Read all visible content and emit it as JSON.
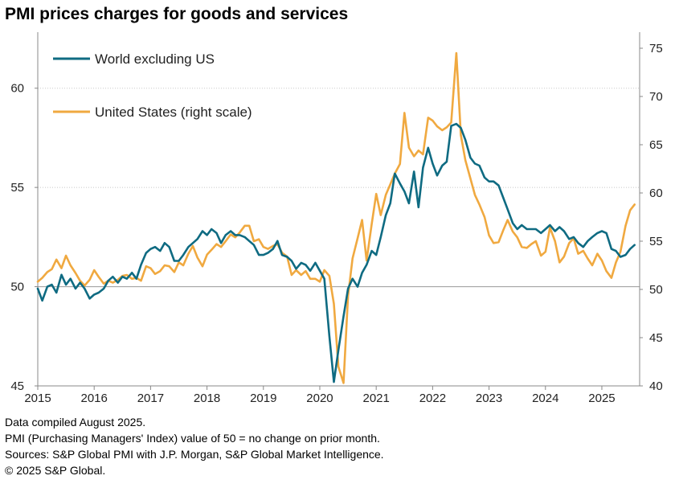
{
  "title": "PMI prices charges for goods and services",
  "chart_data": {
    "type": "line",
    "title": "PMI prices charges for goods and services",
    "x_range": [
      2015.0,
      2025.67
    ],
    "x_ticks": [
      "2015",
      "2016",
      "2017",
      "2018",
      "2019",
      "2020",
      "2021",
      "2022",
      "2023",
      "2024",
      "2025"
    ],
    "y_left": {
      "range": [
        45,
        62.5
      ],
      "ticks": [
        "45",
        "50",
        "55",
        "60"
      ]
    },
    "y_right": {
      "range": [
        40,
        76
      ],
      "ticks": [
        "40",
        "45",
        "50",
        "55",
        "60",
        "65",
        "70",
        "75"
      ]
    },
    "grid": "horizontal at 50 and 55 and 60 (left scale)",
    "legend_position": "top-left",
    "series": [
      {
        "name": "World excluding US",
        "axis": "left",
        "color": "#0f6b82",
        "x": [
          2015.0,
          2015.08,
          2015.17,
          2015.25,
          2015.33,
          2015.42,
          2015.5,
          2015.58,
          2015.67,
          2015.75,
          2015.83,
          2015.92,
          2016.0,
          2016.08,
          2016.17,
          2016.25,
          2016.33,
          2016.42,
          2016.5,
          2016.58,
          2016.67,
          2016.75,
          2016.83,
          2016.92,
          2017.0,
          2017.08,
          2017.17,
          2017.25,
          2017.33,
          2017.42,
          2017.5,
          2017.58,
          2017.67,
          2017.75,
          2017.83,
          2017.92,
          2018.0,
          2018.08,
          2018.17,
          2018.25,
          2018.33,
          2018.42,
          2018.5,
          2018.58,
          2018.67,
          2018.75,
          2018.83,
          2018.92,
          2019.0,
          2019.08,
          2019.17,
          2019.25,
          2019.33,
          2019.42,
          2019.5,
          2019.58,
          2019.67,
          2019.75,
          2019.83,
          2019.92,
          2020.0,
          2020.08,
          2020.17,
          2020.25,
          2020.33,
          2020.42,
          2020.5,
          2020.58,
          2020.67,
          2020.75,
          2020.83,
          2020.92,
          2021.0,
          2021.08,
          2021.17,
          2021.25,
          2021.33,
          2021.42,
          2021.5,
          2021.58,
          2021.67,
          2021.75,
          2021.83,
          2021.92,
          2022.0,
          2022.08,
          2022.17,
          2022.25,
          2022.33,
          2022.42,
          2022.5,
          2022.58,
          2022.67,
          2022.75,
          2022.83,
          2022.92,
          2023.0,
          2023.08,
          2023.17,
          2023.25,
          2023.33,
          2023.42,
          2023.5,
          2023.58,
          2023.67,
          2023.75,
          2023.83,
          2023.92,
          2024.0,
          2024.08,
          2024.17,
          2024.25,
          2024.33,
          2024.42,
          2024.5,
          2024.58,
          2024.67,
          2024.75,
          2024.83,
          2024.92,
          2025.0,
          2025.08,
          2025.17,
          2025.25,
          2025.33,
          2025.42,
          2025.5,
          2025.58
        ],
        "values": [
          49.9,
          49.3,
          50.0,
          50.1,
          49.7,
          50.6,
          50.1,
          50.4,
          49.9,
          50.2,
          49.9,
          49.4,
          49.6,
          49.7,
          49.9,
          50.3,
          50.5,
          50.2,
          50.5,
          50.4,
          50.7,
          50.4,
          51.1,
          51.7,
          51.9,
          52.0,
          51.8,
          52.2,
          52.0,
          51.3,
          51.3,
          51.6,
          52.0,
          52.2,
          52.4,
          52.8,
          52.6,
          52.9,
          52.7,
          52.2,
          52.6,
          52.8,
          52.6,
          52.6,
          52.5,
          52.3,
          52.1,
          51.6,
          51.6,
          51.7,
          51.9,
          52.3,
          51.6,
          51.5,
          51.3,
          50.9,
          51.2,
          51.1,
          50.8,
          51.2,
          50.8,
          50.4,
          47.5,
          45.2,
          46.8,
          48.5,
          49.9,
          50.4,
          50.0,
          50.7,
          51.1,
          51.8,
          51.6,
          52.5,
          53.6,
          54.2,
          55.7,
          55.2,
          54.8,
          54.2,
          55.8,
          54.0,
          56.0,
          57.0,
          56.2,
          55.6,
          56.1,
          56.3,
          58.1,
          58.2,
          58.0,
          57.4,
          56.5,
          56.2,
          56.1,
          55.5,
          55.3,
          55.3,
          55.1,
          54.5,
          53.9,
          53.2,
          52.9,
          53.1,
          52.9,
          52.9,
          52.9,
          52.7,
          52.9,
          53.1,
          52.8,
          53.0,
          52.8,
          52.4,
          52.5,
          52.2,
          52.0,
          52.3,
          52.5,
          52.7,
          52.8,
          52.7,
          51.9,
          51.8,
          51.5,
          51.6,
          51.9,
          52.1
        ]
      },
      {
        "name": "United States (right scale)",
        "axis": "right",
        "color": "#f0a940",
        "x": [
          2015.0,
          2015.08,
          2015.17,
          2015.25,
          2015.33,
          2015.42,
          2015.5,
          2015.58,
          2015.67,
          2015.75,
          2015.83,
          2015.92,
          2016.0,
          2016.08,
          2016.17,
          2016.25,
          2016.33,
          2016.42,
          2016.5,
          2016.58,
          2016.67,
          2016.75,
          2016.83,
          2016.92,
          2017.0,
          2017.08,
          2017.17,
          2017.25,
          2017.33,
          2017.42,
          2017.5,
          2017.58,
          2017.67,
          2017.75,
          2017.83,
          2017.92,
          2018.0,
          2018.08,
          2018.17,
          2018.25,
          2018.33,
          2018.42,
          2018.5,
          2018.58,
          2018.67,
          2018.75,
          2018.83,
          2018.92,
          2019.0,
          2019.08,
          2019.17,
          2019.25,
          2019.33,
          2019.42,
          2019.5,
          2019.58,
          2019.67,
          2019.75,
          2019.83,
          2019.92,
          2020.0,
          2020.08,
          2020.17,
          2020.25,
          2020.33,
          2020.42,
          2020.5,
          2020.58,
          2020.67,
          2020.75,
          2020.83,
          2020.92,
          2021.0,
          2021.08,
          2021.17,
          2021.25,
          2021.33,
          2021.42,
          2021.5,
          2021.58,
          2021.67,
          2021.75,
          2021.83,
          2021.92,
          2022.0,
          2022.08,
          2022.17,
          2022.25,
          2022.33,
          2022.42,
          2022.5,
          2022.58,
          2022.67,
          2022.75,
          2022.83,
          2022.92,
          2023.0,
          2023.08,
          2023.17,
          2023.25,
          2023.33,
          2023.42,
          2023.5,
          2023.58,
          2023.67,
          2023.75,
          2023.83,
          2023.92,
          2024.0,
          2024.08,
          2024.17,
          2024.25,
          2024.33,
          2024.42,
          2024.5,
          2024.58,
          2024.67,
          2024.75,
          2024.83,
          2024.92,
          2025.0,
          2025.08,
          2025.17,
          2025.25,
          2025.33,
          2025.42,
          2025.5,
          2025.58
        ],
        "values": [
          50.8,
          51.2,
          51.8,
          52.1,
          53.1,
          52.2,
          53.5,
          52.5,
          51.7,
          50.9,
          50.4,
          51.0,
          52.0,
          51.3,
          50.6,
          50.9,
          50.7,
          51.0,
          51.4,
          51.5,
          51.1,
          51.2,
          50.9,
          52.4,
          52.2,
          51.6,
          51.9,
          52.5,
          52.4,
          51.8,
          52.8,
          52.5,
          53.7,
          54.5,
          53.3,
          52.4,
          53.6,
          54.1,
          54.7,
          54.4,
          55.0,
          55.7,
          55.4,
          55.9,
          56.6,
          56.6,
          55.0,
          55.2,
          54.4,
          54.2,
          54.5,
          54.7,
          53.8,
          53.4,
          51.5,
          52.0,
          51.5,
          51.9,
          51.1,
          51.1,
          50.8,
          52.0,
          51.4,
          48.5,
          42.0,
          40.3,
          49.3,
          53.2,
          55.3,
          57.2,
          53.0,
          56.8,
          59.9,
          57.7,
          59.8,
          60.9,
          62.0,
          63.0,
          68.3,
          64.7,
          63.8,
          64.4,
          64.0,
          67.8,
          67.5,
          66.9,
          66.5,
          66.8,
          67.3,
          74.5,
          66.0,
          63.4,
          61.5,
          59.8,
          58.8,
          57.5,
          55.6,
          54.8,
          54.9,
          56.1,
          57.2,
          56.0,
          55.4,
          54.4,
          54.3,
          54.7,
          55.0,
          53.5,
          53.9,
          56.4,
          55.0,
          52.8,
          53.4,
          54.8,
          55.3,
          53.7,
          54.0,
          53.2,
          52.5,
          53.7,
          53.0,
          51.9,
          51.2,
          52.8,
          53.9,
          56.6,
          58.2,
          58.8
        ]
      }
    ]
  },
  "legend": [
    "World excluding US",
    "United States (right scale)"
  ],
  "notes": [
    "Data compiled August 2025.",
    "PMI (Purchasing Managers' Index) value of 50 = no change on prior month.",
    "Sources: S&P Global PMI with J.P. Morgan, S&P Global Market Intelligence.",
    "© 2025 S&P Global."
  ]
}
